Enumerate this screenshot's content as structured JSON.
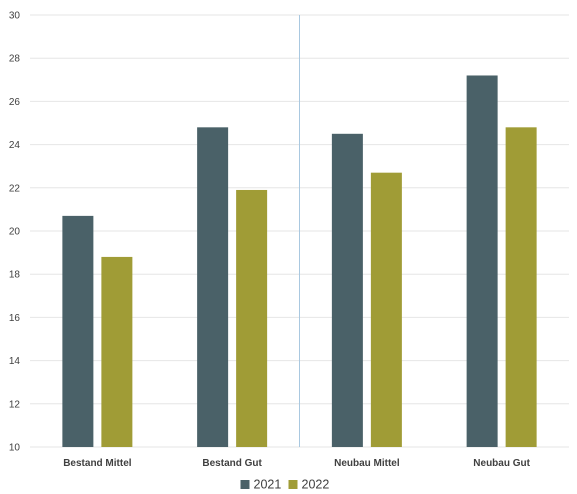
{
  "chart_data": {
    "type": "bar",
    "title": "",
    "xlabel": "",
    "ylabel": "",
    "categories": [
      "Bestand Mittel",
      "Bestand Gut",
      "Neubau Mittel",
      "Neubau Gut"
    ],
    "series": [
      {
        "name": "2021",
        "color": "#4a6168",
        "values": [
          20.7,
          24.8,
          24.5,
          27.2
        ]
      },
      {
        "name": "2022",
        "color": "#a09c36",
        "values": [
          18.8,
          21.9,
          22.7,
          24.8
        ]
      }
    ],
    "ylim": [
      10,
      30
    ],
    "yticks": [
      "10",
      "12",
      "14",
      "16",
      "18",
      "20",
      "22",
      "24",
      "26",
      "28",
      "30"
    ],
    "grid": true,
    "legend_position": "bottom",
    "divider_after_category": 2,
    "divider_color": "#a9c8e0"
  }
}
